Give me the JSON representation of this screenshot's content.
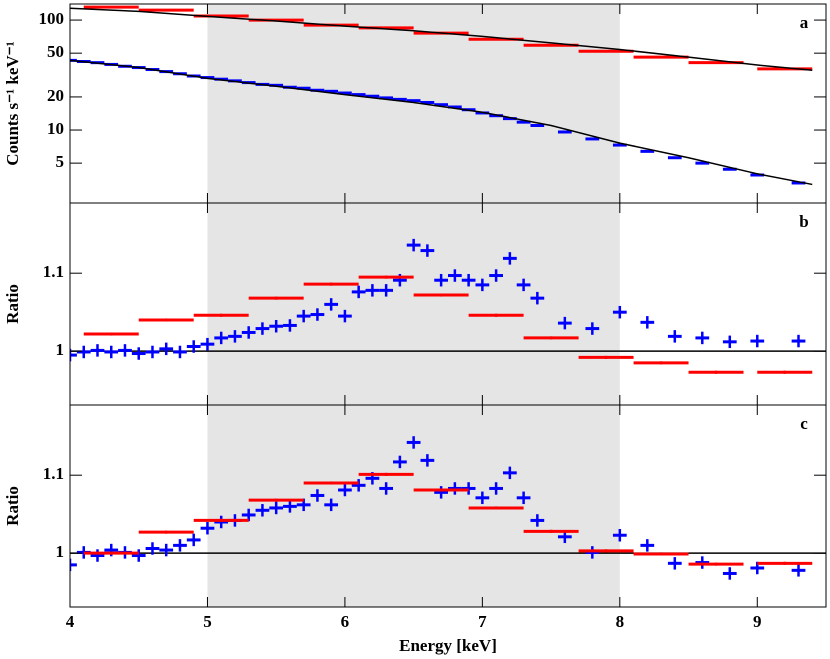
{
  "chart_data": [
    {
      "type": "scatter",
      "panel_label": "a",
      "ylabel": "Counts  s⁻¹ keV⁻¹",
      "log_y": true,
      "xlim": [
        4,
        9.5
      ],
      "xticks": [
        4,
        5,
        6,
        7,
        8,
        9
      ],
      "ylim": [
        2.17,
        140
      ],
      "yticks": [
        5,
        10,
        20,
        50,
        100
      ],
      "shade": [
        5,
        8
      ],
      "series": [
        {
          "color": "#ff0000",
          "xerr": 0.2,
          "x": [
            4.3,
            4.7,
            5.1,
            5.5,
            5.9,
            6.3,
            6.7,
            7.1,
            7.5,
            7.9,
            8.3,
            8.7,
            9.2
          ],
          "values": [
            131,
            123,
            109,
            100,
            90,
            85,
            76,
            67,
            59,
            52,
            46,
            41,
            36
          ]
        },
        {
          "color": "#0000ff",
          "xerr": 0.05,
          "x": [
            4.0,
            4.1,
            4.2,
            4.3,
            4.4,
            4.5,
            4.6,
            4.7,
            4.8,
            4.9,
            5.0,
            5.1,
            5.2,
            5.3,
            5.4,
            5.5,
            5.6,
            5.7,
            5.8,
            5.9,
            6.0,
            6.1,
            6.2,
            6.3,
            6.4,
            6.5,
            6.6,
            6.7,
            6.8,
            6.9,
            7.0,
            7.1,
            7.2,
            7.3,
            7.4,
            7.6,
            7.8,
            8.0,
            8.2,
            8.4,
            8.6,
            8.8,
            9.0,
            9.3
          ],
          "values": [
            43,
            42,
            41,
            39.5,
            38,
            37,
            35.5,
            34,
            32.5,
            31,
            30,
            29,
            28,
            27,
            26,
            25.5,
            24.5,
            24,
            23,
            22.5,
            21.7,
            21,
            20.3,
            19.6,
            19,
            18.5,
            17.8,
            17,
            16.2,
            15.3,
            14.3,
            13.5,
            12.7,
            11.8,
            11,
            9.6,
            8.3,
            7.3,
            6.4,
            5.6,
            5,
            4.4,
            3.9,
            3.3
          ]
        },
        {
          "style": "line",
          "color": "#000000",
          "x": [
            4,
            4.5,
            5,
            5.5,
            6,
            6.5,
            7,
            7.5,
            8,
            8.5,
            9,
            9.4
          ],
          "values": [
            128,
            120,
            108,
            98,
            88,
            80,
            71,
            62,
            54,
            46,
            39,
            35
          ]
        },
        {
          "style": "line",
          "color": "#000000",
          "x": [
            4,
            4.5,
            5,
            5.5,
            6,
            6.5,
            7,
            7.5,
            8,
            8.5,
            9,
            9.4
          ],
          "values": [
            43,
            37,
            29.5,
            25,
            21,
            17.8,
            14.5,
            11,
            7.6,
            5.6,
            4,
            3.2
          ]
        }
      ]
    },
    {
      "type": "scatter",
      "panel_label": "b",
      "ylabel": "Ratio",
      "xlim": [
        4,
        9.5
      ],
      "xticks": [
        4,
        5,
        6,
        7,
        8,
        9
      ],
      "ylim": [
        0.931,
        1.19
      ],
      "yticks": [
        1,
        1.1
      ],
      "shade": [
        5,
        8
      ],
      "refline": 1,
      "series": [
        {
          "color": "#0000ff",
          "xerr": 0.05,
          "yerr": 0.008,
          "x": [
            4.0,
            4.1,
            4.2,
            4.3,
            4.4,
            4.5,
            4.6,
            4.7,
            4.8,
            4.9,
            5.0,
            5.1,
            5.2,
            5.3,
            5.4,
            5.5,
            5.6,
            5.7,
            5.8,
            5.9,
            6.0,
            6.1,
            6.2,
            6.3,
            6.4,
            6.5,
            6.6,
            6.7,
            6.8,
            6.9,
            7.0,
            7.1,
            7.2,
            7.3,
            7.4,
            7.6,
            7.8,
            8.0,
            8.2,
            8.4,
            8.6,
            8.8,
            9.0,
            9.3
          ],
          "values": [
            0.995,
            0.999,
            1.001,
            0.999,
            1.001,
            0.997,
            0.999,
            1.003,
            0.999,
            1.006,
            1.009,
            1.017,
            1.019,
            1.024,
            1.029,
            1.032,
            1.033,
            1.045,
            1.047,
            1.06,
            1.045,
            1.076,
            1.078,
            1.078,
            1.091,
            1.136,
            1.129,
            1.091,
            1.097,
            1.091,
            1.085,
            1.097,
            1.119,
            1.085,
            1.068,
            1.036,
            1.029,
            1.05,
            1.037,
            1.019,
            1.017,
            1.012,
            1.013,
            1.013
          ]
        },
        {
          "color": "#ff0000",
          "xerr": 0.2,
          "yerr": 0.002,
          "x": [
            4.3,
            4.7,
            5.1,
            5.5,
            5.9,
            6.3,
            6.7,
            7.1,
            7.5,
            7.9,
            8.3,
            8.7,
            9.2
          ],
          "values": [
            1.022,
            1.04,
            1.046,
            1.068,
            1.086,
            1.095,
            1.072,
            1.046,
            1.017,
            0.992,
            0.985,
            0.973,
            0.973
          ]
        }
      ]
    },
    {
      "type": "scatter",
      "panel_label": "c",
      "ylabel": "Ratio",
      "xlabel": "Energy [keV]",
      "xlim": [
        4,
        9.5
      ],
      "xticks": [
        4,
        5,
        6,
        7,
        8,
        9
      ],
      "ylim": [
        0.931,
        1.19
      ],
      "yticks": [
        1,
        1.1
      ],
      "shade": [
        5,
        8
      ],
      "refline": 1,
      "series": [
        {
          "color": "#0000ff",
          "xerr": 0.05,
          "yerr": 0.008,
          "x": [
            4.0,
            4.1,
            4.2,
            4.3,
            4.4,
            4.5,
            4.6,
            4.7,
            4.8,
            4.9,
            5.0,
            5.1,
            5.2,
            5.3,
            5.4,
            5.5,
            5.6,
            5.7,
            5.8,
            5.9,
            6.0,
            6.1,
            6.2,
            6.3,
            6.4,
            6.5,
            6.6,
            6.7,
            6.8,
            6.9,
            7.0,
            7.1,
            7.2,
            7.3,
            7.4,
            7.6,
            7.8,
            8.0,
            8.2,
            8.4,
            8.6,
            8.8,
            9.0,
            9.3
          ],
          "values": [
            0.985,
            1.001,
            0.997,
            1.004,
            1.001,
            0.997,
            1.006,
            1.004,
            1.01,
            1.017,
            1.032,
            1.04,
            1.042,
            1.049,
            1.055,
            1.058,
            1.06,
            1.062,
            1.074,
            1.062,
            1.081,
            1.087,
            1.096,
            1.083,
            1.117,
            1.142,
            1.119,
            1.078,
            1.083,
            1.083,
            1.071,
            1.083,
            1.103,
            1.071,
            1.042,
            1.021,
            1.001,
            1.023,
            1.01,
            0.987,
            0.988,
            0.974,
            0.981,
            0.978
          ]
        },
        {
          "color": "#ff0000",
          "xerr": 0.2,
          "yerr": 0.002,
          "x": [
            4.3,
            4.7,
            5.1,
            5.5,
            5.9,
            6.3,
            6.7,
            7.1,
            7.5,
            7.9,
            8.3,
            8.7,
            9.2
          ],
          "values": [
            1.0,
            1.027,
            1.042,
            1.068,
            1.09,
            1.101,
            1.081,
            1.058,
            1.028,
            1.003,
            0.999,
            0.986,
            0.987
          ]
        }
      ]
    }
  ]
}
